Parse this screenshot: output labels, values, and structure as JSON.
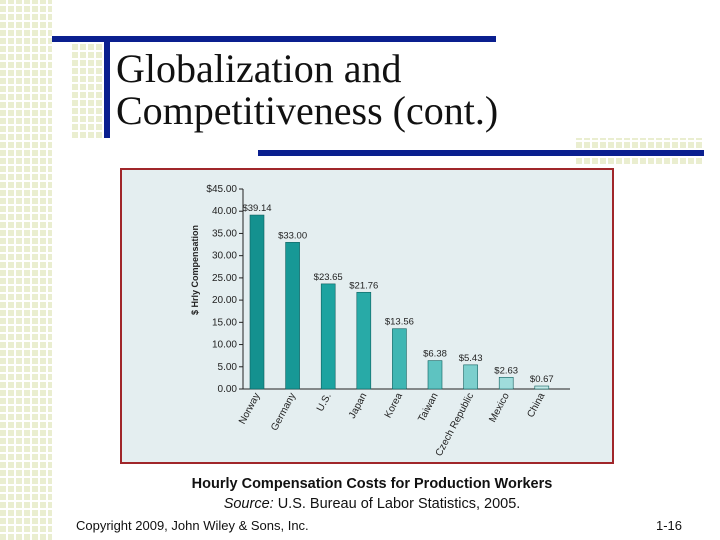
{
  "slide": {
    "title_line1": "Globalization and",
    "title_line2": "Competitiveness (cont.)",
    "caption": "Hourly Compensation Costs for Production Workers",
    "source_label": "Source:",
    "source_text": "U.S. Bureau of Labor Statistics, 2005.",
    "copyright": "Copyright 2009, John Wiley & Sons, Inc.",
    "page_number": "1-16"
  },
  "colors": {
    "accent_navy": "#0a1f8f",
    "frame_red": "#a0262a",
    "chart_bg": "#e4eef0"
  },
  "chart_data": {
    "type": "bar",
    "categories": [
      "Norway",
      "Germany",
      "U.S.",
      "Japan",
      "Korea",
      "Taiwan",
      "Czech Republic",
      "Mexico",
      "China"
    ],
    "values": [
      39.14,
      33.0,
      23.65,
      21.76,
      13.56,
      6.38,
      5.43,
      2.63,
      0.67
    ],
    "data_labels": [
      "$39.14",
      "$33.00",
      "$23.65",
      "$21.76",
      "$13.56",
      "$6.38",
      "$5.43",
      "$2.63",
      "$0.67"
    ],
    "bar_colors": [
      "#14918f",
      "#179896",
      "#1ca3a0",
      "#28aaa7",
      "#3fb6b3",
      "#5ec3c1",
      "#7ccfcd",
      "#9fdcdb",
      "#c3e9e8"
    ],
    "ylabel": "$ Hrly Compensation",
    "yticks": [
      0,
      5,
      10,
      15,
      20,
      25,
      30,
      35,
      40,
      45
    ],
    "ytick_labels": [
      "0.00",
      "5.00",
      "10.00",
      "15.00",
      "20.00",
      "25.00",
      "30.00",
      "35.00",
      "40.00",
      "$45.00"
    ],
    "ylim": [
      0,
      45
    ],
    "grid": false,
    "legend": "none"
  }
}
